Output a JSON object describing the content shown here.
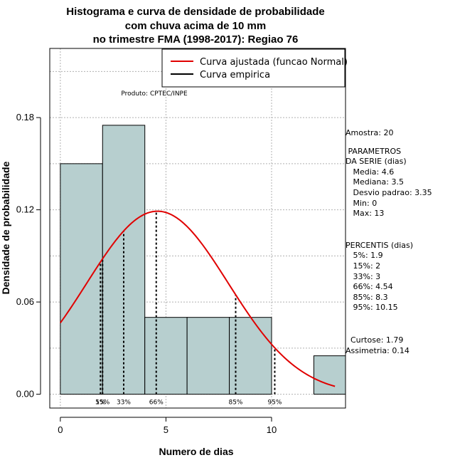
{
  "chart_data": {
    "type": "bar",
    "title_lines": [
      "Histograma e curva de densidade de probabilidade",
      "com chuva acima de 10 mm",
      "no trimestre FMA (1998-2017): Regiao 76"
    ],
    "xlabel": "Numero de dias",
    "ylabel": "Densidade de probabilidade",
    "xlim": [
      -0.5,
      13.5
    ],
    "ylim": [
      -0.009,
      0.225
    ],
    "x_ticks": [
      0,
      5,
      10
    ],
    "y_ticks": [
      0.0,
      0.06,
      0.12,
      0.18
    ],
    "y_tick_labels": [
      "0.00",
      "0.06",
      "0.12",
      "0.18"
    ],
    "grid": true,
    "bins": [
      {
        "start": 0,
        "end": 2,
        "density": 0.15
      },
      {
        "start": 2,
        "end": 4,
        "density": 0.175
      },
      {
        "start": 4,
        "end": 6,
        "density": 0.05
      },
      {
        "start": 6,
        "end": 8,
        "density": 0.05
      },
      {
        "start": 8,
        "end": 10,
        "density": 0.05
      },
      {
        "start": 10,
        "end": 12,
        "density": 0.0
      },
      {
        "start": 12,
        "end": 14,
        "density": 0.025
      }
    ],
    "fitted_curve": {
      "name": "Curva ajustada (funcao Normal)",
      "mean": 4.6,
      "sd": 3.35,
      "x_range": [
        0,
        13
      ],
      "color": "#e00000"
    },
    "empirical_curve": {
      "name": "Curva empirica",
      "color": "#000000"
    },
    "percentile_markers": [
      {
        "label": "5%",
        "x": 1.9
      },
      {
        "label": "15%",
        "x": 2
      },
      {
        "label": "33%",
        "x": 3
      },
      {
        "label": "66%",
        "x": 4.54
      },
      {
        "label": "85%",
        "x": 8.3
      },
      {
        "label": "95%",
        "x": 10.15
      }
    ],
    "annotation": "Produto: CPTEC/INPE",
    "legend_position": "top-right",
    "colors": {
      "bar_fill": "#b7cfcf",
      "grid": "#b0b0b0"
    }
  },
  "side_panel": {
    "sample": "Amostra: 20",
    "params_title_1": " PARAMETROS",
    "params_title_2": "DA SERIE (dias)",
    "mean": "   Media: 4.6",
    "median": "   Mediana: 3.5",
    "sd": "   Desvio padrao: 3.35",
    "min": "   Min: 0",
    "max": "   Max: 13",
    "pct_title": "PERCENTIS (dias)",
    "p5": "   5%: 1.9",
    "p15": "   15%: 2",
    "p33": "   33%: 3",
    "p66": "   66%: 4.54",
    "p85": "   85%: 8.3",
    "p95": "   95%: 10.15",
    "kurtosis": "  Curtose: 1.79",
    "skewness": "Assimetria: 0.14"
  }
}
